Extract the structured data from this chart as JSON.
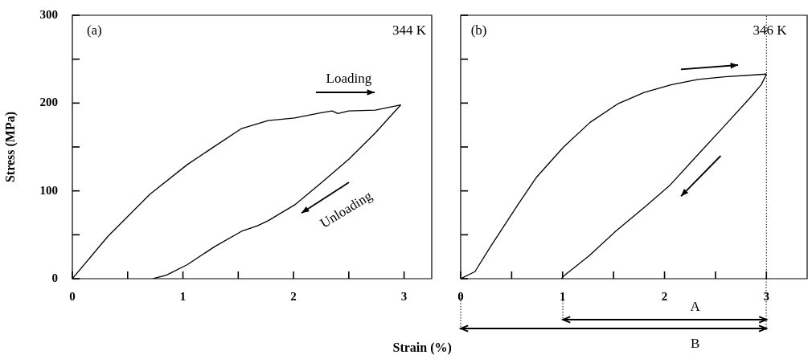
{
  "chart_data": [
    {
      "type": "line",
      "ylabel": "Stress (MPa)",
      "xlabel": "Strain (%)",
      "xlim": [
        0,
        3.25
      ],
      "ylim": [
        0,
        300
      ],
      "xticks": [
        0,
        {
          "value": 0.5,
          "label": null
        },
        1,
        {
          "value": 1.5,
          "label": null
        },
        2,
        {
          "value": 2.5,
          "label": null
        },
        3
      ],
      "yticks": [
        0,
        {
          "value": 50,
          "label": null
        },
        100,
        {
          "value": 150,
          "label": null
        },
        200,
        {
          "value": 250,
          "label": null
        },
        300
      ],
      "annotations": [
        "(a)",
        "344 K",
        "Loading",
        "Unloading"
      ],
      "series": [
        {
          "color": "#000000",
          "x": [
            0,
            0.32,
            0.7,
            1.04,
            1.29,
            1.53,
            1.77,
            2.01,
            2.25,
            2.35,
            2.4,
            2.5,
            2.74,
            2.97
          ],
          "values": [
            0,
            48,
            96,
            130,
            151,
            171,
            180,
            183,
            189,
            191,
            188,
            191,
            192,
            198
          ]
        },
        {
          "color": "#000000",
          "x": [
            2.97,
            2.74,
            2.5,
            2.25,
            2.01,
            1.77,
            1.67,
            1.53,
            1.28,
            1.04,
            0.85,
            0.73
          ],
          "values": [
            198,
            166,
            136,
            109,
            84,
            66,
            60,
            54,
            36,
            16,
            4,
            0
          ]
        }
      ]
    },
    {
      "type": "line",
      "xlim": [
        0,
        3.4
      ],
      "ylim": [
        0,
        300
      ],
      "tick_labels": "x",
      "xticks": [
        0,
        {
          "value": 0.5,
          "label": null
        },
        1,
        {
          "value": 1.5,
          "label": null
        },
        2,
        {
          "value": 2.5,
          "label": null
        },
        3
      ],
      "yticks": [
        0,
        {
          "value": 50,
          "label": null
        },
        {
          "value": 100,
          "label": null
        },
        {
          "value": 150,
          "label": null
        },
        {
          "value": 200,
          "label": null
        },
        {
          "value": 250,
          "label": null
        },
        {
          "value": 300,
          "label": null
        }
      ],
      "ref_lines": [
        {
          "axis": "x",
          "value": 3,
          "line_style": "dotted"
        }
      ],
      "annotations": [
        "(b)",
        "346 K",
        "A",
        "B"
      ],
      "series": [
        {
          "color": "#000000",
          "x": [
            0,
            0.14,
            0.29,
            0.56,
            0.74,
            1.01,
            1.27,
            1.54,
            1.8,
            2.07,
            2.33,
            2.59,
            3
          ],
          "values": [
            0,
            8,
            36,
            84,
            115,
            150,
            178,
            199,
            212,
            221,
            227,
            230,
            233
          ]
        },
        {
          "color": "#000000",
          "x": [
            3,
            2.95,
            2.84,
            2.58,
            2.31,
            2.05,
            1.79,
            1.52,
            1.26,
            1,
            0.99
          ],
          "values": [
            233,
            221,
            206,
            173,
            139,
            106,
            80,
            54,
            26,
            2,
            0
          ]
        }
      ]
    }
  ]
}
